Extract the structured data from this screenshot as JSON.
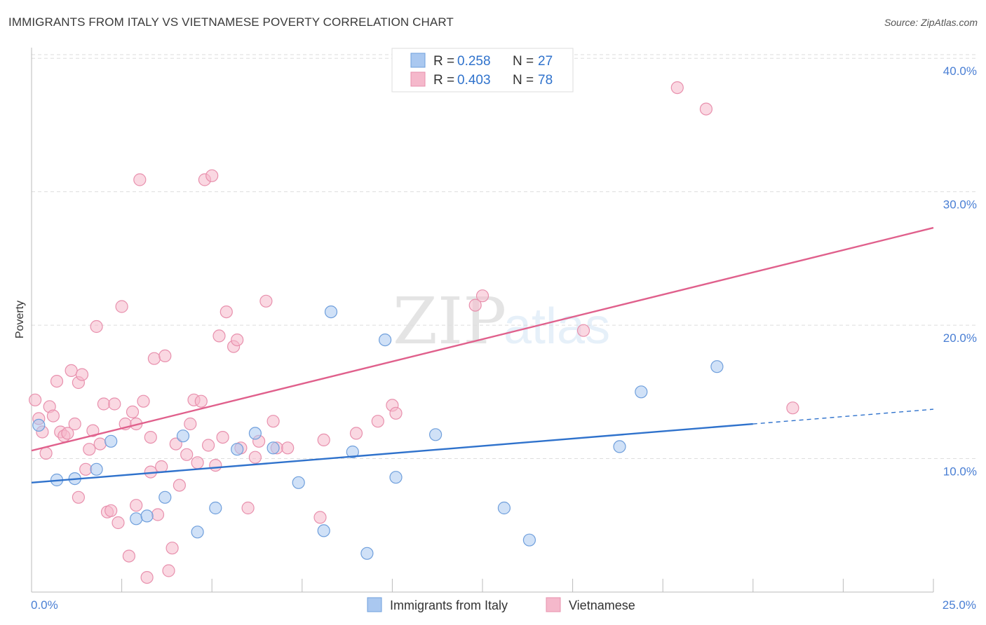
{
  "title": "IMMIGRANTS FROM ITALY VS VIETNAMESE POVERTY CORRELATION CHART",
  "source": "Source: ZipAtlas.com",
  "watermark": {
    "zip": "ZIP",
    "atlas": "atlas"
  },
  "legend_top": [
    {
      "r_label": "R =",
      "r_value": "0.258",
      "n_label": "N =",
      "n_value": "27"
    },
    {
      "r_label": "R =",
      "r_value": "0.403",
      "n_label": "N =",
      "n_value": "78"
    }
  ],
  "colors": {
    "italy_fill": "#aac8f0",
    "italy_stroke": "#6f9fdc",
    "italy_line": "#2f72cc",
    "viet_fill": "#f5b8cb",
    "viet_stroke": "#e890ad",
    "viet_line": "#e0608c",
    "axis_text": "#4a7fd4",
    "grid": "#dddddd"
  },
  "chart_data": {
    "type": "scatter",
    "xlabel": "",
    "ylabel": "Poverty",
    "xlim": [
      0,
      25
    ],
    "ylim": [
      0,
      40.8
    ],
    "x_tick_labels": [
      "0.0%",
      "25.0%"
    ],
    "y_ticks": [
      10,
      20,
      30,
      40
    ],
    "y_tick_labels": [
      "10.0%",
      "20.0%",
      "30.0%",
      "40.0%"
    ],
    "series": [
      {
        "name": "Immigrants from Italy",
        "r": 0.258,
        "n": 27,
        "trend": {
          "x0": 0,
          "y0": 8.2,
          "x1": 20,
          "y1": 12.6,
          "dash_x1": 25,
          "dash_y1": 13.7
        },
        "points": [
          [
            0.2,
            12.5
          ],
          [
            0.7,
            8.4
          ],
          [
            1.2,
            8.5
          ],
          [
            1.8,
            9.2
          ],
          [
            2.2,
            11.3
          ],
          [
            2.9,
            5.5
          ],
          [
            3.2,
            5.7
          ],
          [
            3.7,
            7.1
          ],
          [
            4.2,
            11.7
          ],
          [
            4.6,
            4.5
          ],
          [
            5.1,
            6.3
          ],
          [
            5.7,
            10.7
          ],
          [
            6.2,
            11.9
          ],
          [
            6.7,
            10.8
          ],
          [
            7.4,
            8.2
          ],
          [
            8.1,
            4.6
          ],
          [
            8.3,
            21.0
          ],
          [
            8.9,
            10.5
          ],
          [
            9.3,
            2.9
          ],
          [
            9.8,
            18.9
          ],
          [
            10.1,
            8.6
          ],
          [
            11.2,
            11.8
          ],
          [
            13.1,
            6.3
          ],
          [
            13.8,
            3.9
          ],
          [
            16.3,
            10.9
          ],
          [
            16.9,
            15.0
          ],
          [
            19.0,
            16.9
          ]
        ]
      },
      {
        "name": "Vietnamese",
        "r": 0.403,
        "n": 78,
        "trend": {
          "x0": 0,
          "y0": 10.6,
          "x1": 25,
          "y1": 27.3
        },
        "points": [
          [
            0.1,
            14.4
          ],
          [
            0.2,
            13.0
          ],
          [
            0.3,
            12.0
          ],
          [
            0.4,
            10.4
          ],
          [
            0.5,
            13.9
          ],
          [
            0.6,
            13.2
          ],
          [
            0.7,
            15.8
          ],
          [
            0.8,
            12.0
          ],
          [
            0.9,
            11.7
          ],
          [
            1.0,
            11.9
          ],
          [
            1.1,
            16.6
          ],
          [
            1.2,
            12.6
          ],
          [
            1.3,
            15.7
          ],
          [
            1.4,
            16.3
          ],
          [
            1.5,
            9.2
          ],
          [
            1.6,
            10.7
          ],
          [
            1.7,
            12.1
          ],
          [
            1.8,
            19.9
          ],
          [
            1.9,
            11.1
          ],
          [
            2.0,
            14.1
          ],
          [
            2.1,
            6.0
          ],
          [
            2.2,
            6.1
          ],
          [
            2.3,
            14.1
          ],
          [
            2.4,
            5.2
          ],
          [
            2.5,
            21.4
          ],
          [
            2.6,
            12.6
          ],
          [
            2.7,
            2.7
          ],
          [
            2.8,
            13.5
          ],
          [
            2.9,
            6.5
          ],
          [
            3.0,
            30.9
          ],
          [
            3.1,
            14.3
          ],
          [
            3.2,
            1.1
          ],
          [
            3.3,
            11.6
          ],
          [
            3.4,
            17.5
          ],
          [
            3.5,
            5.8
          ],
          [
            3.6,
            9.4
          ],
          [
            3.7,
            17.7
          ],
          [
            3.8,
            1.6
          ],
          [
            3.9,
            3.3
          ],
          [
            4.0,
            11.1
          ],
          [
            4.1,
            8.0
          ],
          [
            4.3,
            10.3
          ],
          [
            4.4,
            12.6
          ],
          [
            4.5,
            14.4
          ],
          [
            4.6,
            9.7
          ],
          [
            4.7,
            14.3
          ],
          [
            4.8,
            30.9
          ],
          [
            4.9,
            11.0
          ],
          [
            5.0,
            31.2
          ],
          [
            5.1,
            9.5
          ],
          [
            5.2,
            19.2
          ],
          [
            5.3,
            11.6
          ],
          [
            5.4,
            21.0
          ],
          [
            5.6,
            18.4
          ],
          [
            5.7,
            18.9
          ],
          [
            5.8,
            10.8
          ],
          [
            6.0,
            6.3
          ],
          [
            6.2,
            10.1
          ],
          [
            6.3,
            11.3
          ],
          [
            6.5,
            21.8
          ],
          [
            6.7,
            12.8
          ],
          [
            6.8,
            10.8
          ],
          [
            7.1,
            10.8
          ],
          [
            8.0,
            5.6
          ],
          [
            8.1,
            11.4
          ],
          [
            9.0,
            11.9
          ],
          [
            9.6,
            12.8
          ],
          [
            10.0,
            14.0
          ],
          [
            10.1,
            13.4
          ],
          [
            12.3,
            21.5
          ],
          [
            12.5,
            22.2
          ],
          [
            15.3,
            19.6
          ],
          [
            17.9,
            37.8
          ],
          [
            18.7,
            36.2
          ],
          [
            21.1,
            13.8
          ],
          [
            3.3,
            9.0
          ],
          [
            1.3,
            7.1
          ],
          [
            2.9,
            12.6
          ]
        ]
      }
    ]
  },
  "legend_bottom": [
    {
      "label": "Immigrants from Italy"
    },
    {
      "label": "Vietnamese"
    }
  ]
}
